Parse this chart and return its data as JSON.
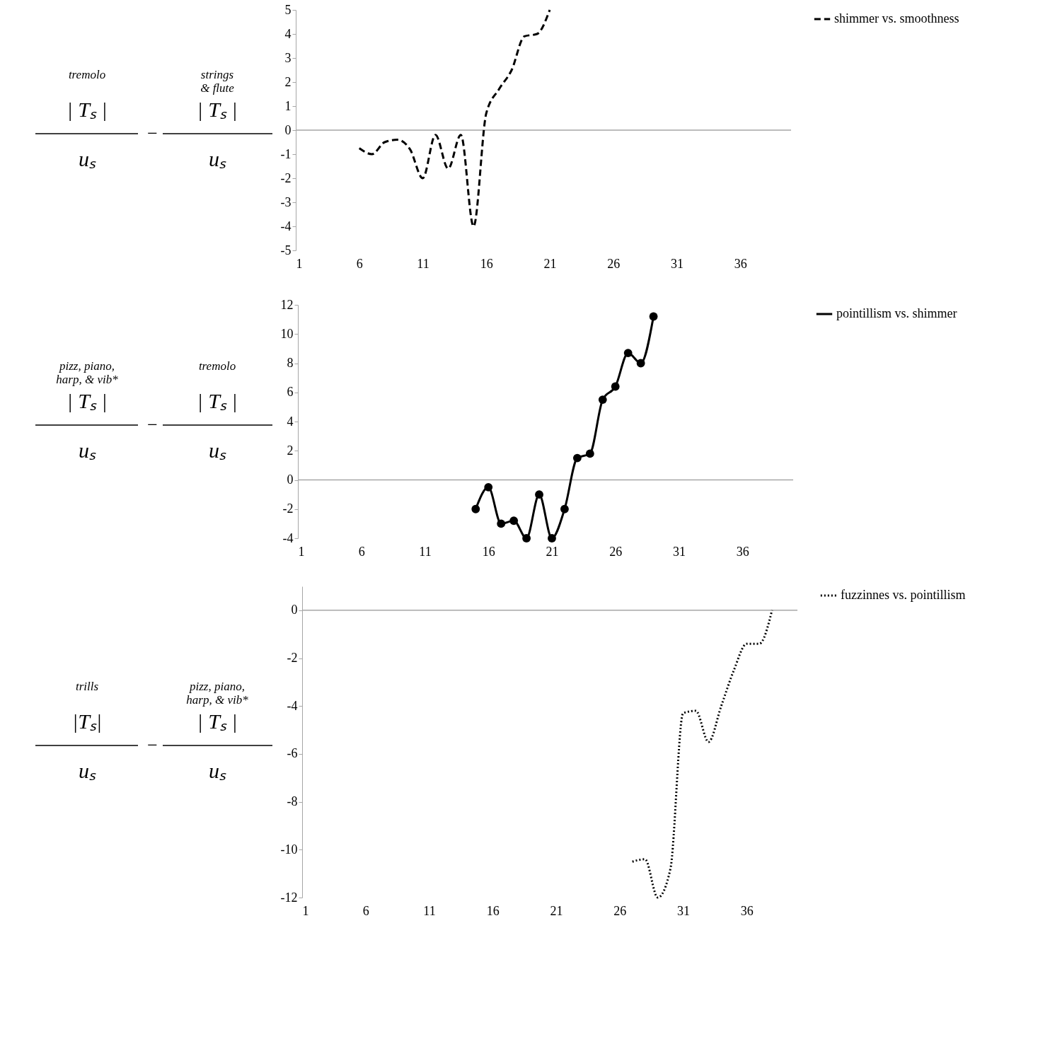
{
  "chart_data": [
    {
      "type": "line",
      "annotations": [
        "tremolo",
        "|  Tₛ  |",
        "uₛ",
        "−",
        "strings\n& flute",
        "|  Tₛ  |",
        "uₛ"
      ],
      "xlim": [
        1,
        40
      ],
      "xticks": [
        1,
        6,
        11,
        16,
        21,
        26,
        31,
        36
      ],
      "ylim": [
        -5,
        5
      ],
      "yticks": [
        -5,
        -4,
        -3,
        -2,
        -1,
        0,
        1,
        2,
        3,
        4,
        5
      ],
      "grid": false,
      "legend": "right",
      "line_style": "dashed",
      "ref_lines": [
        {
          "axis": "y",
          "value": 0,
          "color": "#a6a6a6"
        }
      ],
      "series": [
        {
          "name": "shimmer vs. smoothness",
          "color": "#000000",
          "x": [
            6,
            7,
            8,
            9,
            10,
            11,
            12,
            13,
            14,
            15,
            16,
            17,
            18,
            19,
            20,
            21
          ],
          "values": [
            -0.75,
            -1,
            -0.5,
            -0.4,
            -0.8,
            -2,
            -0.2,
            -1.6,
            -0.2,
            -4,
            0.7,
            1.7,
            2.5,
            3.9,
            4,
            5
          ]
        }
      ]
    },
    {
      "type": "line",
      "annotations": [
        "pizz, piano,\nharp,  & vib*",
        "|      Tₛ      |",
        "uₛ",
        "−",
        "tremolo",
        "|  Tₛ  |",
        "uₛ"
      ],
      "xlim": [
        1,
        40
      ],
      "xticks": [
        1,
        6,
        11,
        16,
        21,
        26,
        31,
        36
      ],
      "ylim": [
        -4,
        12
      ],
      "yticks": [
        -4,
        -2,
        0,
        2,
        4,
        6,
        8,
        10,
        12
      ],
      "grid": false,
      "legend": "right",
      "line_style": "solid",
      "marker": "circle",
      "ref_lines": [
        {
          "axis": "y",
          "value": 0,
          "color": "#a6a6a6"
        }
      ],
      "series": [
        {
          "name": "pointillism vs. shimmer",
          "color": "#000000",
          "x": [
            15,
            16,
            17,
            18,
            19,
            20,
            21,
            22,
            23,
            24,
            25,
            26,
            27,
            28,
            29
          ],
          "values": [
            -2,
            -0.5,
            -3,
            -2.8,
            -4,
            -1,
            -4,
            -2,
            1.5,
            1.8,
            5.5,
            6.4,
            8.7,
            8,
            11.2
          ]
        }
      ]
    },
    {
      "type": "line",
      "annotations": [
        "trills",
        "|Tₛ|",
        "uₛ",
        "−",
        "pizz, piano,\nharp,  & vib*",
        "|      Tₛ      |",
        "uₛ"
      ],
      "xlim": [
        1,
        40
      ],
      "xticks": [
        1,
        6,
        11,
        16,
        21,
        26,
        31,
        36
      ],
      "ylim": [
        -12,
        1
      ],
      "yticks": [
        -12,
        -10,
        -8,
        -6,
        -4,
        -2,
        0
      ],
      "grid": false,
      "legend": "right",
      "line_style": "dotted",
      "ref_lines": [
        {
          "axis": "y",
          "value": 0,
          "color": "#a6a6a6"
        }
      ],
      "series": [
        {
          "name": "fuzzinnes vs. pointillism",
          "color": "#000000",
          "x": [
            27,
            28,
            29,
            30,
            31,
            32,
            33,
            34,
            35,
            36,
            37,
            38
          ],
          "values": [
            -10.5,
            -10.4,
            -12,
            -10.8,
            -4.3,
            -4.2,
            -5.5,
            -4,
            -2.5,
            -1.4,
            -1.4,
            0
          ]
        }
      ]
    }
  ]
}
